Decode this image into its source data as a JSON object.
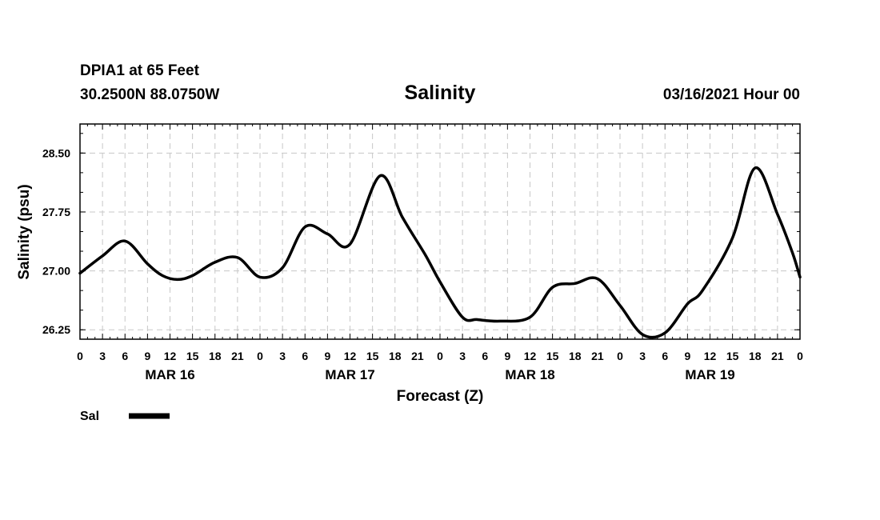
{
  "header": {
    "station": "DPIA1 at 65 Feet",
    "coords": "30.2500N 88.0750W",
    "title": "Salinity",
    "datetime": "03/16/2021 Hour 00"
  },
  "legend": {
    "label": "Sal"
  },
  "chart_data": {
    "type": "line",
    "title": "Salinity",
    "xlabel": "Forecast (Z)",
    "ylabel": "Salinity (psu)",
    "xlim": [
      0,
      96
    ],
    "ylim": [
      26.13,
      28.87
    ],
    "yticks": [
      26.25,
      27.0,
      27.75,
      28.5
    ],
    "ytick_labels": [
      "26.25",
      "27.00",
      "27.75",
      "28.50"
    ],
    "xticks": [
      0,
      3,
      6,
      9,
      12,
      15,
      18,
      21,
      24,
      27,
      30,
      33,
      36,
      39,
      42,
      45,
      48,
      51,
      54,
      57,
      60,
      63,
      66,
      69,
      72,
      75,
      78,
      81,
      84,
      87,
      90,
      93,
      96
    ],
    "xtick_labels": [
      "0",
      "3",
      "6",
      "9",
      "12",
      "15",
      "18",
      "21",
      "0",
      "3",
      "6",
      "9",
      "12",
      "15",
      "18",
      "21",
      "0",
      "3",
      "6",
      "9",
      "12",
      "15",
      "18",
      "21",
      "0",
      "3",
      "6",
      "9",
      "12",
      "15",
      "18",
      "21",
      "0"
    ],
    "day_labels": [
      {
        "label": "MAR 16",
        "x": 12
      },
      {
        "label": "MAR 17",
        "x": 36
      },
      {
        "label": "MAR 18",
        "x": 60
      },
      {
        "label": "MAR 19",
        "x": 84
      }
    ],
    "grid": true,
    "series": [
      {
        "name": "Sal",
        "x": [
          0,
          3,
          6,
          9,
          11,
          13,
          15,
          18,
          21,
          24,
          27,
          30,
          33,
          36,
          40,
          43,
          46,
          48,
          51,
          53,
          56,
          60,
          63,
          66,
          69,
          72,
          75,
          78,
          81,
          83,
          87,
          90,
          93,
          95,
          96
        ],
        "values": [
          26.97,
          27.19,
          27.38,
          27.09,
          26.94,
          26.89,
          26.94,
          27.11,
          27.17,
          26.92,
          27.04,
          27.56,
          27.47,
          27.34,
          28.21,
          27.68,
          27.21,
          26.86,
          26.41,
          26.38,
          26.36,
          26.41,
          26.79,
          26.84,
          26.9,
          26.56,
          26.19,
          26.21,
          26.58,
          26.75,
          27.42,
          28.31,
          27.72,
          27.23,
          26.92
        ]
      }
    ]
  }
}
